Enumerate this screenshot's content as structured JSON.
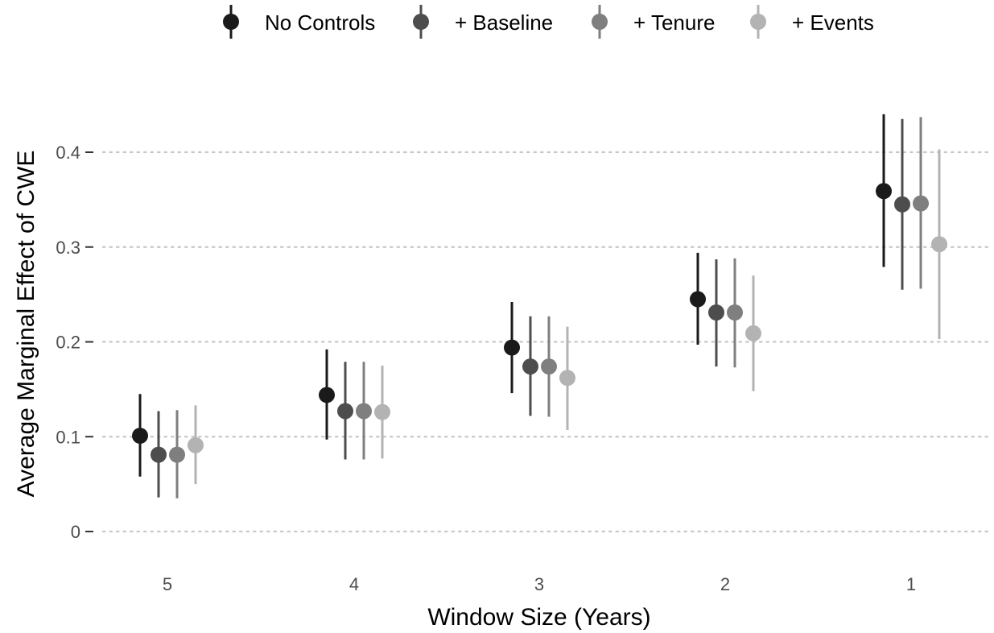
{
  "chart_data": {
    "type": "scatter",
    "title": "",
    "xlabel": "Window Size (Years)",
    "ylabel": "Average Marginal Effect of CWE",
    "categories": [
      "5",
      "4",
      "3",
      "2",
      "1"
    ],
    "yticks": [
      0,
      0.1,
      0.2,
      0.3,
      0.4
    ],
    "ytick_labels": [
      "0",
      "0.1",
      "0.2",
      "0.3",
      "0.4"
    ],
    "ylim": [
      -0.03,
      0.455
    ],
    "grid": "horizontal dotted",
    "legend_position": "top",
    "series": [
      {
        "name": "No Controls",
        "color": "#1a1a1a",
        "values": [
          0.101,
          0.144,
          0.194,
          0.245,
          0.359
        ],
        "lower": [
          0.058,
          0.097,
          0.146,
          0.197,
          0.279
        ],
        "upper": [
          0.145,
          0.192,
          0.242,
          0.294,
          0.44
        ]
      },
      {
        "name": "+ Baseline",
        "color": "#4d4d4d",
        "values": [
          0.081,
          0.127,
          0.174,
          0.231,
          0.345
        ],
        "lower": [
          0.036,
          0.076,
          0.122,
          0.174,
          0.255
        ],
        "upper": [
          0.127,
          0.179,
          0.227,
          0.287,
          0.435
        ]
      },
      {
        "name": "+ Tenure",
        "color": "#7f7f7f",
        "values": [
          0.081,
          0.127,
          0.174,
          0.231,
          0.346
        ],
        "lower": [
          0.035,
          0.076,
          0.121,
          0.173,
          0.256
        ],
        "upper": [
          0.128,
          0.179,
          0.227,
          0.288,
          0.437
        ]
      },
      {
        "name": "+ Events",
        "color": "#b3b3b3",
        "values": [
          0.091,
          0.126,
          0.162,
          0.209,
          0.303
        ],
        "lower": [
          0.05,
          0.077,
          0.107,
          0.148,
          0.203
        ],
        "upper": [
          0.133,
          0.175,
          0.216,
          0.27,
          0.403
        ]
      }
    ]
  }
}
